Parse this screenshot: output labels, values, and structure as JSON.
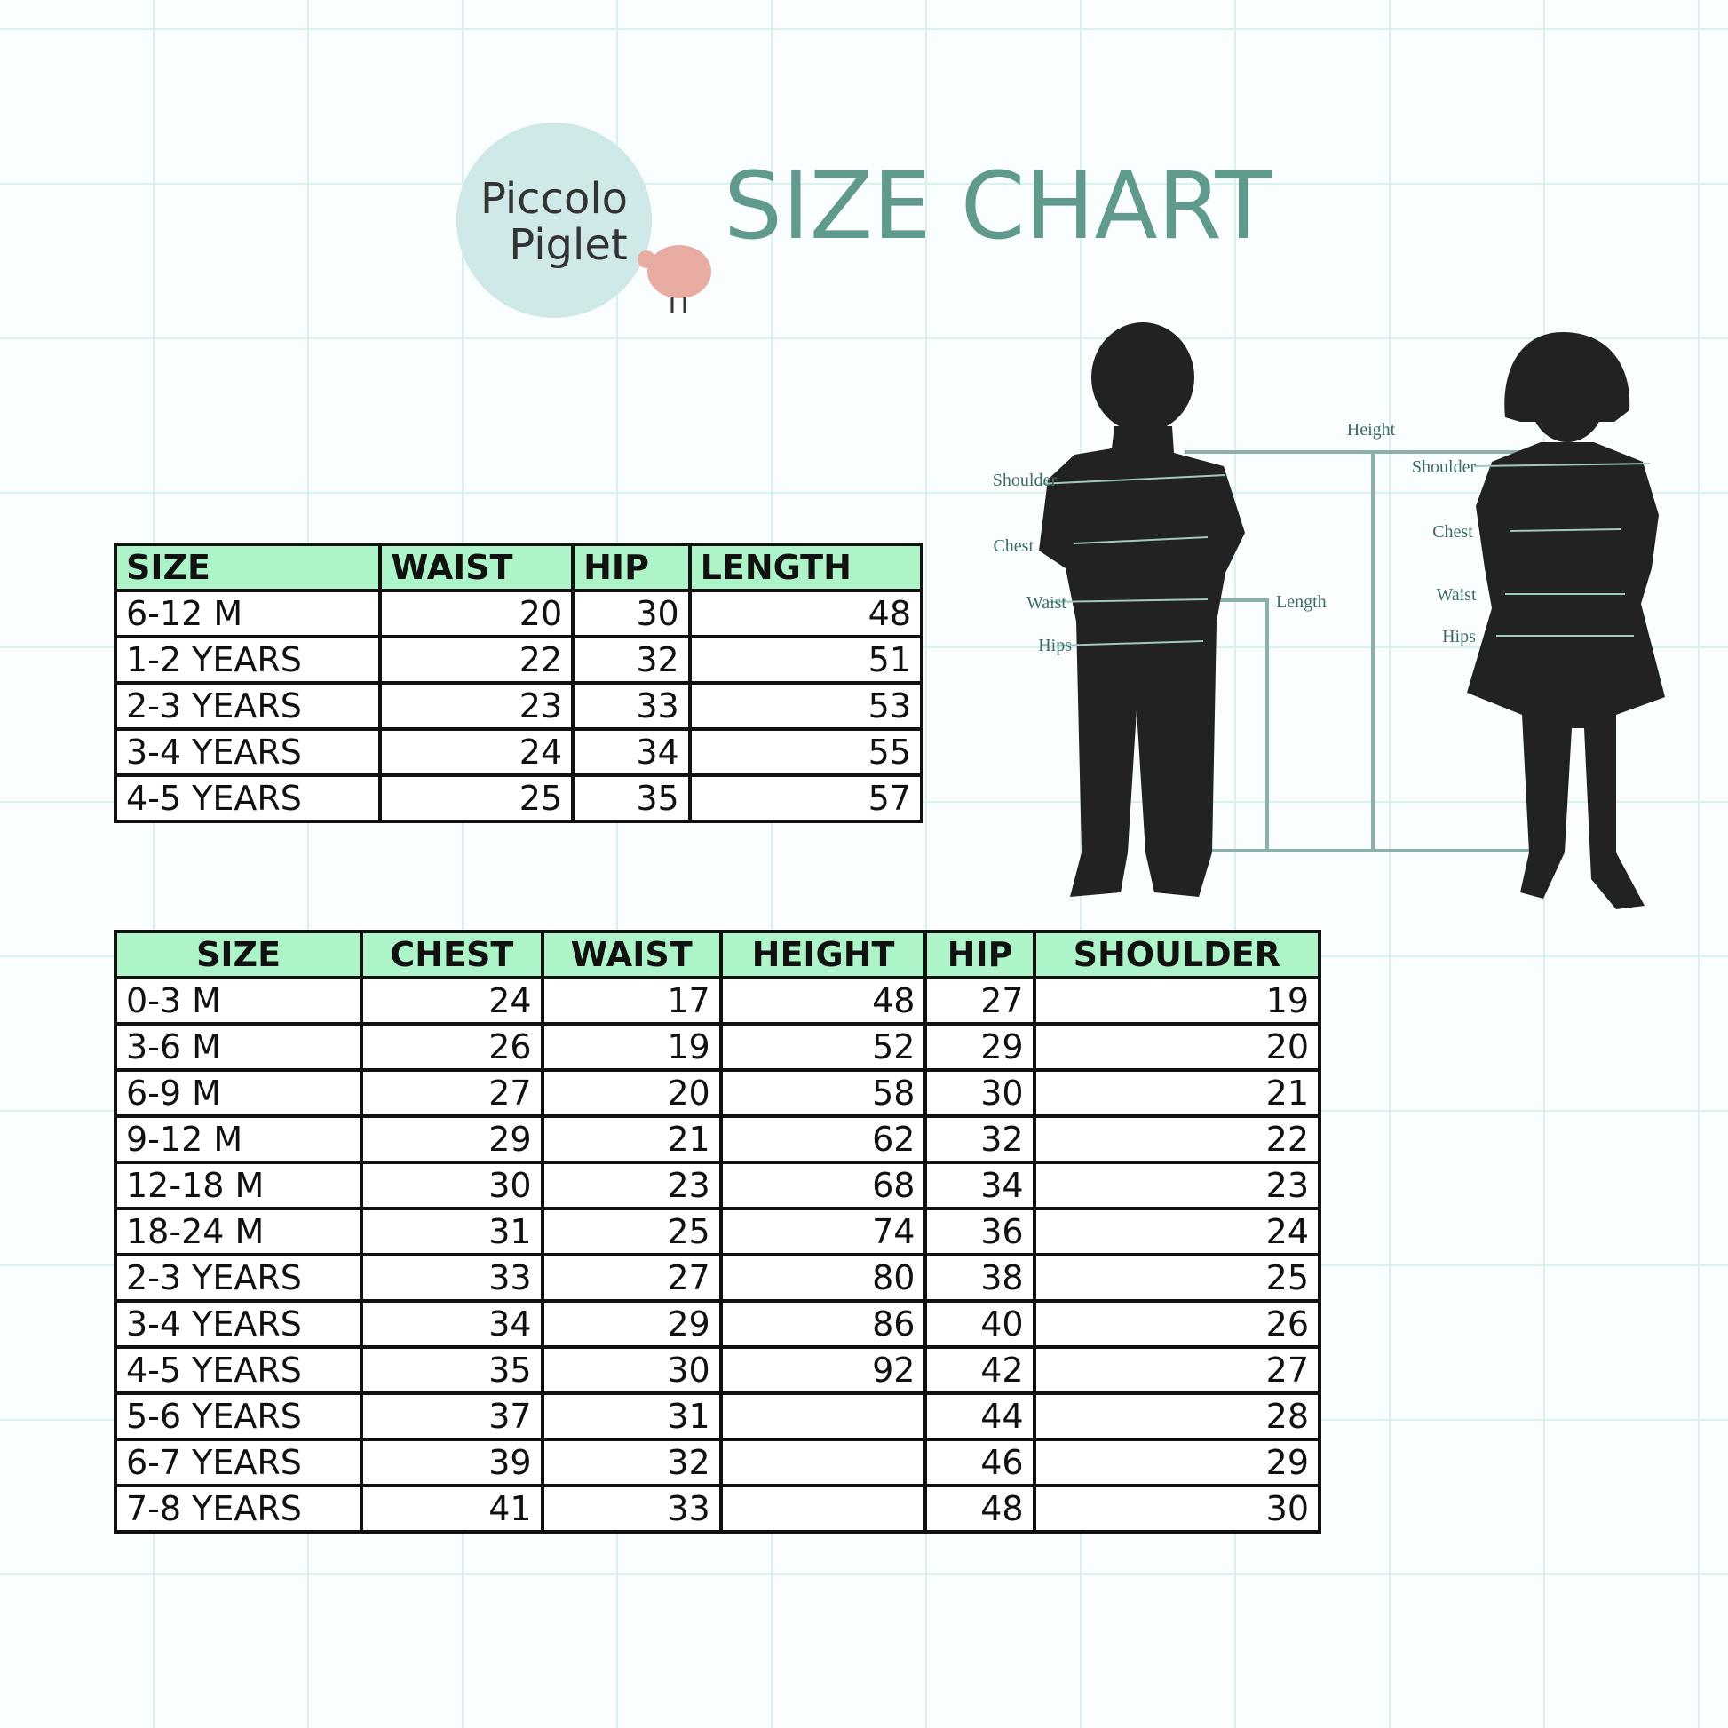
{
  "header": {
    "logo": [
      "Piccolo",
      "Piglet"
    ],
    "title": "SIZE CHART"
  },
  "diagram": {
    "height": "Height",
    "length": "Length",
    "boy": [
      "Shoulder",
      "Chest",
      "Waist",
      "Hips"
    ],
    "girl": [
      "Shoulder",
      "Chest",
      "Waist",
      "Hips"
    ]
  },
  "table_small": {
    "columns": [
      "SIZE",
      "WAIST",
      "HIP",
      "LENGTH"
    ],
    "rows": [
      [
        "6-12 M",
        20,
        30,
        48
      ],
      [
        "1-2 YEARS",
        22,
        32,
        51
      ],
      [
        "2-3 YEARS",
        23,
        33,
        53
      ],
      [
        "3-4 YEARS",
        24,
        34,
        55
      ],
      [
        "4-5 YEARS",
        25,
        35,
        57
      ]
    ]
  },
  "table_large": {
    "columns": [
      "SIZE",
      "CHEST",
      "WAIST",
      "HEIGHT",
      "HIP",
      "SHOULDER"
    ],
    "rows": [
      [
        "0-3 M",
        24,
        17,
        48,
        27,
        19
      ],
      [
        "3-6 M",
        26,
        19,
        52,
        29,
        20
      ],
      [
        "6-9 M",
        27,
        20,
        58,
        30,
        21
      ],
      [
        "9-12 M",
        29,
        21,
        62,
        32,
        22
      ],
      [
        "12-18 M",
        30,
        23,
        68,
        34,
        23
      ],
      [
        "18-24 M",
        31,
        25,
        74,
        36,
        24
      ],
      [
        "2-3 YEARS",
        33,
        27,
        80,
        38,
        25
      ],
      [
        "3-4 YEARS",
        34,
        29,
        86,
        40,
        26
      ],
      [
        "4-5 YEARS",
        35,
        30,
        92,
        42,
        27
      ],
      [
        "5-6 YEARS",
        37,
        31,
        null,
        44,
        28
      ],
      [
        "6-7 YEARS",
        39,
        32,
        null,
        46,
        29
      ],
      [
        "7-8 YEARS",
        41,
        33,
        null,
        48,
        30
      ]
    ]
  }
}
